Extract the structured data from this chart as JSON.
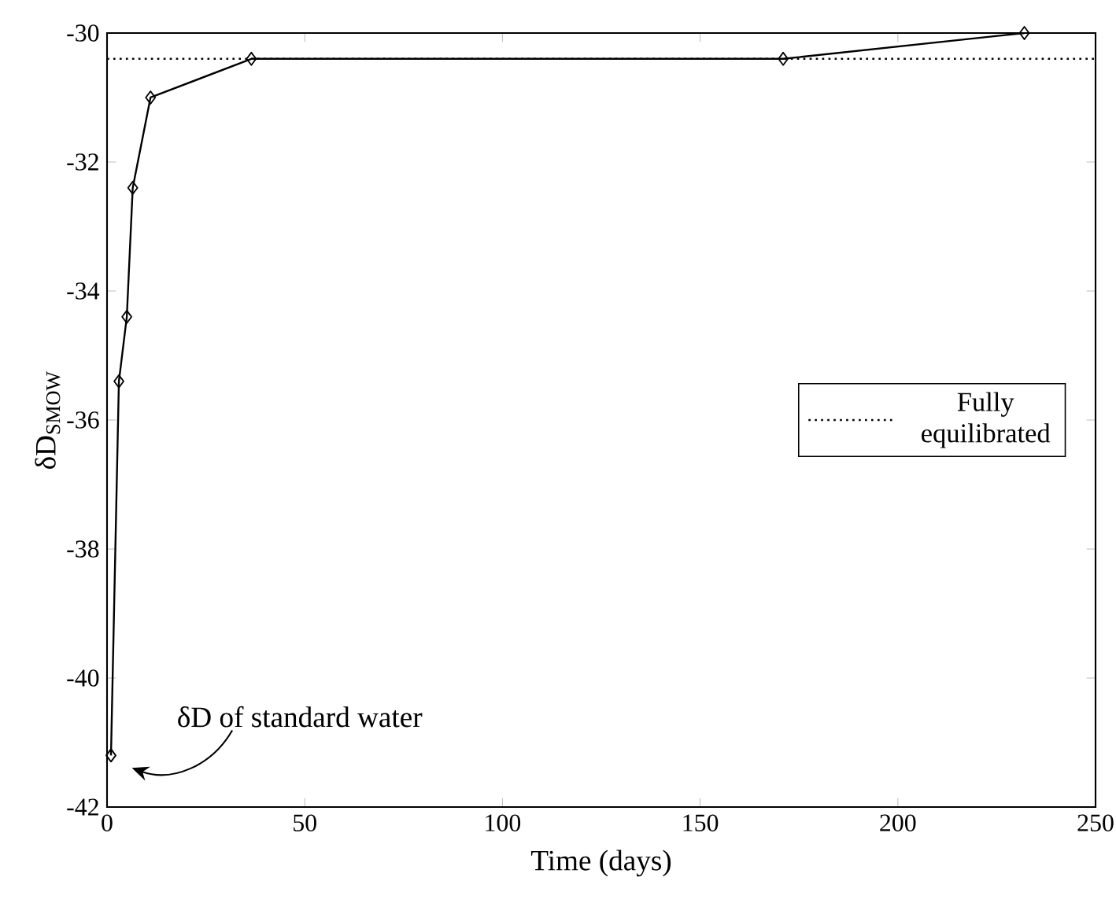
{
  "chart_data": {
    "type": "line",
    "xlabel": "Time (days)",
    "ylabel": "δD$_{SMOW}$",
    "x": [
      1,
      3,
      5,
      6.5,
      11,
      36.5,
      171,
      232
    ],
    "series": [
      {
        "color": "#000000",
        "values": [
          -41.2,
          -35.4,
          -34.4,
          -32.4,
          -31,
          -30.4,
          -30.4,
          -30
        ]
      }
    ],
    "xlim": [
      0,
      250
    ],
    "xticks": [
      0,
      50,
      100,
      150,
      200,
      250
    ],
    "ylim": [
      -42,
      -30
    ],
    "yticks": [
      -42,
      -40,
      -38,
      -36,
      -34,
      -32,
      -30
    ],
    "marker": "diamond",
    "line_style": "solid",
    "grid": false,
    "legend": "right",
    "ref_lines": [
      {
        "axis": "y",
        "value": -30.4,
        "label": "Fully equilibrated",
        "color": "#000000",
        "line_style": "dotted"
      }
    ],
    "annotations": [
      {
        "text": "δD of standard water",
        "x": 1,
        "y": -41.2
      }
    ]
  }
}
